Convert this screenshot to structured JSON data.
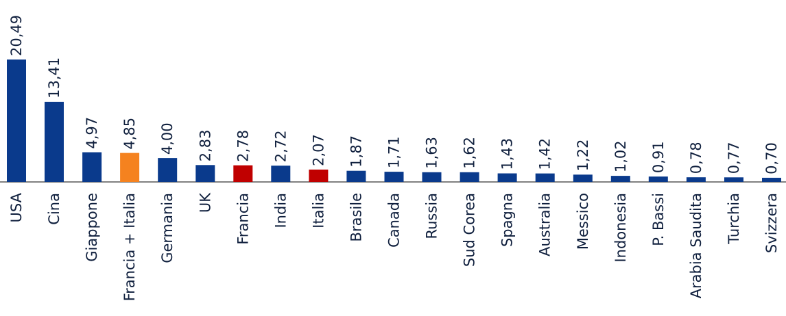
{
  "chart_data": {
    "type": "bar",
    "title": "",
    "xlabel": "",
    "ylabel": "",
    "ylim": [
      0,
      20.49
    ],
    "grid": false,
    "legend": "none",
    "categories": [
      "USA",
      "Cina",
      "Giappone",
      "Francia + Italia",
      "Germania",
      "UK",
      "Francia",
      "India",
      "Italia",
      "Brasile",
      "Canada",
      "Russia",
      "Sud Corea",
      "Spagna",
      "Australia",
      "Messico",
      "Indonesia",
      "P. Bassi",
      "Arabia Saudita",
      "Turchia",
      "Svizzera"
    ],
    "values": [
      20.49,
      13.41,
      4.97,
      4.85,
      4.0,
      2.83,
      2.78,
      2.72,
      2.07,
      1.87,
      1.71,
      1.63,
      1.62,
      1.43,
      1.42,
      1.22,
      1.02,
      0.91,
      0.78,
      0.77,
      0.7
    ],
    "value_labels": [
      "20,49",
      "13,41",
      "4,97",
      "4,85",
      "4,00",
      "2,83",
      "2,78",
      "2,72",
      "2,07",
      "1,87",
      "1,71",
      "1,63",
      "1,62",
      "1,43",
      "1,42",
      "1,22",
      "1,02",
      "0,91",
      "0,78",
      "0,77",
      "0,70"
    ],
    "colors": {
      "default": "#0a3a8c",
      "combined": "#f5821f",
      "highlight": "#c00000"
    },
    "bar_color_keys": [
      "default",
      "default",
      "default",
      "combined",
      "default",
      "default",
      "highlight",
      "default",
      "highlight",
      "default",
      "default",
      "default",
      "default",
      "default",
      "default",
      "default",
      "default",
      "default",
      "default",
      "default",
      "default"
    ]
  }
}
